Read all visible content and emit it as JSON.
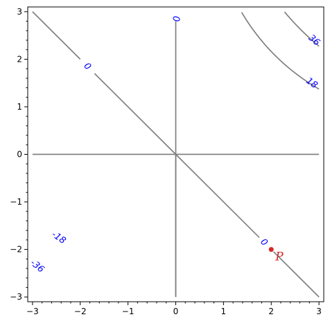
{
  "chart_data": {
    "type": "contour",
    "function": "x*y*(x+y)",
    "title": "",
    "xlabel": "",
    "ylabel": "",
    "xlim": [
      -3.1,
      3.1
    ],
    "ylim": [
      -3.1,
      3.1
    ],
    "grid": false,
    "x_ticks": [
      -3,
      -2,
      -1,
      0,
      1,
      2,
      3
    ],
    "y_ticks": [
      -3,
      -2,
      -1,
      0,
      1,
      2,
      3
    ],
    "x_tick_labels": [
      "−3",
      "−2",
      "−1",
      "0",
      "1",
      "2",
      "3"
    ],
    "y_tick_labels": [
      "−3",
      "−2",
      "−1",
      "0",
      "1",
      "2",
      "3"
    ],
    "levels": [
      -36,
      -18,
      0,
      18,
      36
    ],
    "contour_color": "#808080",
    "label_color": "#0000ff",
    "contour_labels": [
      {
        "text": "0",
        "x": 0,
        "y": 2.85,
        "rotation": 90
      },
      {
        "text": "0",
        "x": -1.85,
        "y": 1.85,
        "rotation": 45
      },
      {
        "text": "0",
        "x": 1.85,
        "y": -1.85,
        "rotation": 45
      },
      {
        "text": "36",
        "x": 2.9,
        "y": 2.4,
        "rotation": 40
      },
      {
        "text": "18",
        "x": 2.85,
        "y": 1.5,
        "rotation": 35
      },
      {
        "text": "-18",
        "x": -2.45,
        "y": -1.75,
        "rotation": 35
      },
      {
        "text": "-36",
        "x": -2.9,
        "y": -2.35,
        "rotation": 40
      }
    ],
    "point": {
      "label": "P",
      "x": 2,
      "y": -2,
      "color": "#d62728"
    }
  }
}
